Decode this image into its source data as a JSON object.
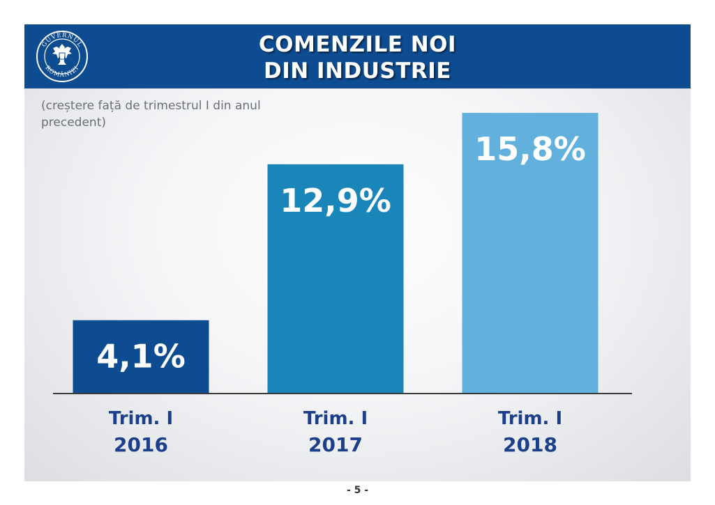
{
  "header": {
    "title_line1": "COMENZILE NOI",
    "title_line2": "DIN INDUSTRIE",
    "logo_text_top": "GUVERNUL",
    "logo_text_bottom": "ROMÂNIEI"
  },
  "subtitle": "(creștere față de trimestrul I din anul precedent)",
  "page_number": "- 5 -",
  "colors": {
    "header": "#0e4c92",
    "category_label": "#1c3f8a",
    "bars": [
      "#0e4c92",
      "#1a85b8",
      "#61b1dc"
    ]
  },
  "chart_data": {
    "type": "bar",
    "categories": [
      {
        "line1": "Trim. I",
        "line2": "2016"
      },
      {
        "line1": "Trim. I",
        "line2": "2017"
      },
      {
        "line1": "Trim. I",
        "line2": "2018"
      }
    ],
    "values": [
      4.1,
      12.9,
      15.8
    ],
    "value_labels": [
      "4,1%",
      "12,9%",
      "15,8%"
    ],
    "unit": "%",
    "ylim": [
      0,
      16
    ],
    "grid": false,
    "legend": "none"
  }
}
